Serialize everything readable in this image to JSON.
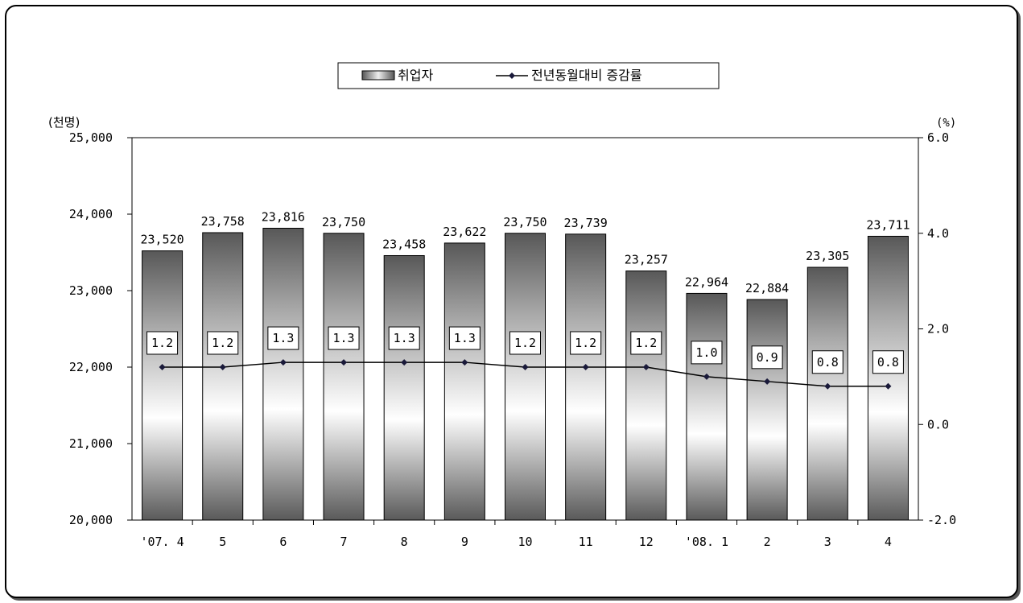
{
  "chart_data": {
    "type": "bar",
    "categories": [
      "'07. 4",
      "5",
      "6",
      "7",
      "8",
      "9",
      "10",
      "11",
      "12",
      "'08. 1",
      "2",
      "3",
      "4"
    ],
    "series": [
      {
        "name": "취업자",
        "type": "bar",
        "axis": "left",
        "values": [
          23520,
          23758,
          23816,
          23750,
          23458,
          23622,
          23750,
          23739,
          23257,
          22964,
          22884,
          23305,
          23711
        ],
        "labels": [
          "23,520",
          "23,758",
          "23,816",
          "23,750",
          "23,458",
          "23,622",
          "23,750",
          "23,739",
          "23,257",
          "22,964",
          "22,884",
          "23,305",
          "23,711"
        ]
      },
      {
        "name": "전년동월대비 증감률",
        "type": "line",
        "axis": "right",
        "values": [
          1.2,
          1.2,
          1.3,
          1.3,
          1.3,
          1.3,
          1.2,
          1.2,
          1.2,
          1.0,
          0.9,
          0.8,
          0.8
        ],
        "labels": [
          "1.2",
          "1.2",
          "1.3",
          "1.3",
          "1.3",
          "1.3",
          "1.2",
          "1.2",
          "1.2",
          "1.0",
          "0.9",
          "0.8",
          "0.8"
        ]
      }
    ],
    "left_axis": {
      "unit_label": "(천명)",
      "ylim": [
        20000,
        25000
      ],
      "ticks": [
        20000,
        21000,
        22000,
        23000,
        24000,
        25000
      ],
      "tick_labels": [
        "20,000",
        "21,000",
        "22,000",
        "23,000",
        "24,000",
        "25,000"
      ]
    },
    "right_axis": {
      "unit_label": "(%)",
      "ylim": [
        -2.0,
        6.0
      ],
      "ticks": [
        -2.0,
        0.0,
        2.0,
        4.0,
        6.0
      ],
      "tick_labels": [
        "-2.0",
        "0.0",
        "2.0",
        "4.0",
        "6.0"
      ]
    },
    "grid": false,
    "legend_position": "top-center",
    "colors": {
      "bar_dark": "#5a5a5a",
      "bar_light": "#ffffff",
      "line": "#000000",
      "marker": "#1a1a3a"
    }
  }
}
